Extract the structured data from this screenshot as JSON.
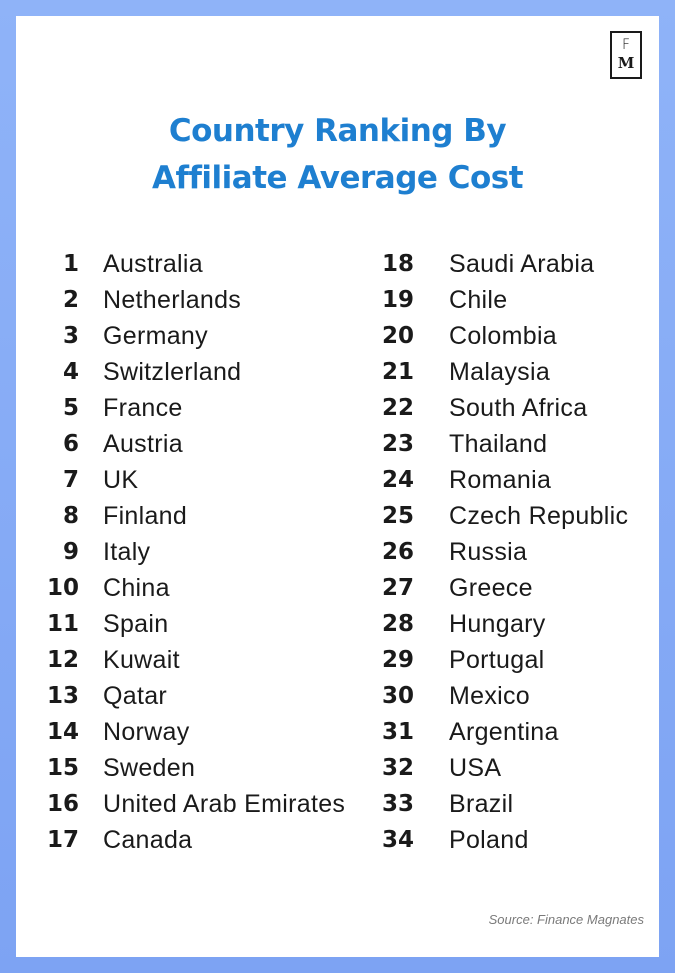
{
  "logo": {
    "top": "F",
    "bottom": "M"
  },
  "title": {
    "line1": "Country Ranking By",
    "line2": "Affiliate Average Cost"
  },
  "rankings_left": [
    {
      "rank": "1",
      "country": "Australia"
    },
    {
      "rank": "2",
      "country": "Netherlands"
    },
    {
      "rank": "3",
      "country": "Germany"
    },
    {
      "rank": "4",
      "country": "Switzlerland"
    },
    {
      "rank": "5",
      "country": "France"
    },
    {
      "rank": "6",
      "country": "Austria"
    },
    {
      "rank": "7",
      "country": "UK"
    },
    {
      "rank": "8",
      "country": "Finland"
    },
    {
      "rank": "9",
      "country": "Italy"
    },
    {
      "rank": "10",
      "country": "China"
    },
    {
      "rank": "11",
      "country": "Spain"
    },
    {
      "rank": "12",
      "country": "Kuwait"
    },
    {
      "rank": "13",
      "country": "Qatar"
    },
    {
      "rank": "14",
      "country": "Norway"
    },
    {
      "rank": "15",
      "country": "Sweden"
    },
    {
      "rank": "16",
      "country": "United Arab Emirates"
    },
    {
      "rank": "17",
      "country": "Canada"
    }
  ],
  "rankings_right": [
    {
      "rank": "18",
      "country": "Saudi Arabia"
    },
    {
      "rank": "19",
      "country": "Chile"
    },
    {
      "rank": "20",
      "country": "Colombia"
    },
    {
      "rank": "21",
      "country": "Malaysia"
    },
    {
      "rank": "22",
      "country": "South Africa"
    },
    {
      "rank": "23",
      "country": "Thailand"
    },
    {
      "rank": "24",
      "country": "Romania"
    },
    {
      "rank": "25",
      "country": "Czech Republic"
    },
    {
      "rank": "26",
      "country": "Russia"
    },
    {
      "rank": "27",
      "country": "Greece"
    },
    {
      "rank": "28",
      "country": "Hungary"
    },
    {
      "rank": "29",
      "country": "Portugal"
    },
    {
      "rank": "30",
      "country": "Mexico"
    },
    {
      "rank": "31",
      "country": "Argentina"
    },
    {
      "rank": "32",
      "country": "USA"
    },
    {
      "rank": "33",
      "country": "Brazil"
    },
    {
      "rank": "34",
      "country": "Poland"
    }
  ],
  "source": "Source: Finance Magnates",
  "colors": {
    "title": "#1e7fd0",
    "border": "#7fa6f5",
    "text": "#1a1a1a",
    "source": "#7a7a7a"
  }
}
